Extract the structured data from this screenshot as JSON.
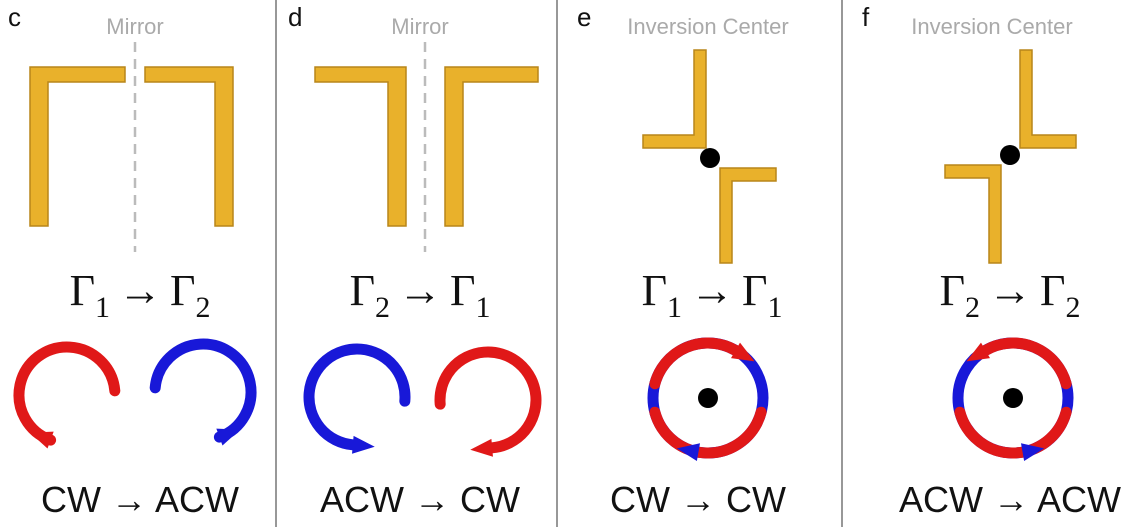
{
  "panels": [
    {
      "letter": "c",
      "title": "Mirror",
      "transform": {
        "from": "Γ",
        "from_sub": "1",
        "arrow": "→",
        "to": "Γ",
        "to_sub": "2"
      },
      "rotation": "CW → ACW"
    },
    {
      "letter": "d",
      "title": "Mirror",
      "transform": {
        "from": "Γ",
        "from_sub": "2",
        "arrow": "→",
        "to": "Γ",
        "to_sub": "1"
      },
      "rotation": "ACW → CW"
    },
    {
      "letter": "e",
      "title": "Inversion Center",
      "transform": {
        "from": "Γ",
        "from_sub": "1",
        "arrow": "→",
        "to": "Γ",
        "to_sub": "1"
      },
      "rotation": "CW → CW"
    },
    {
      "letter": "f",
      "title": "Inversion Center",
      "transform": {
        "from": "Γ",
        "from_sub": "2",
        "arrow": "→",
        "to": "Γ",
        "to_sub": "2"
      },
      "rotation": "ACW → ACW"
    }
  ]
}
